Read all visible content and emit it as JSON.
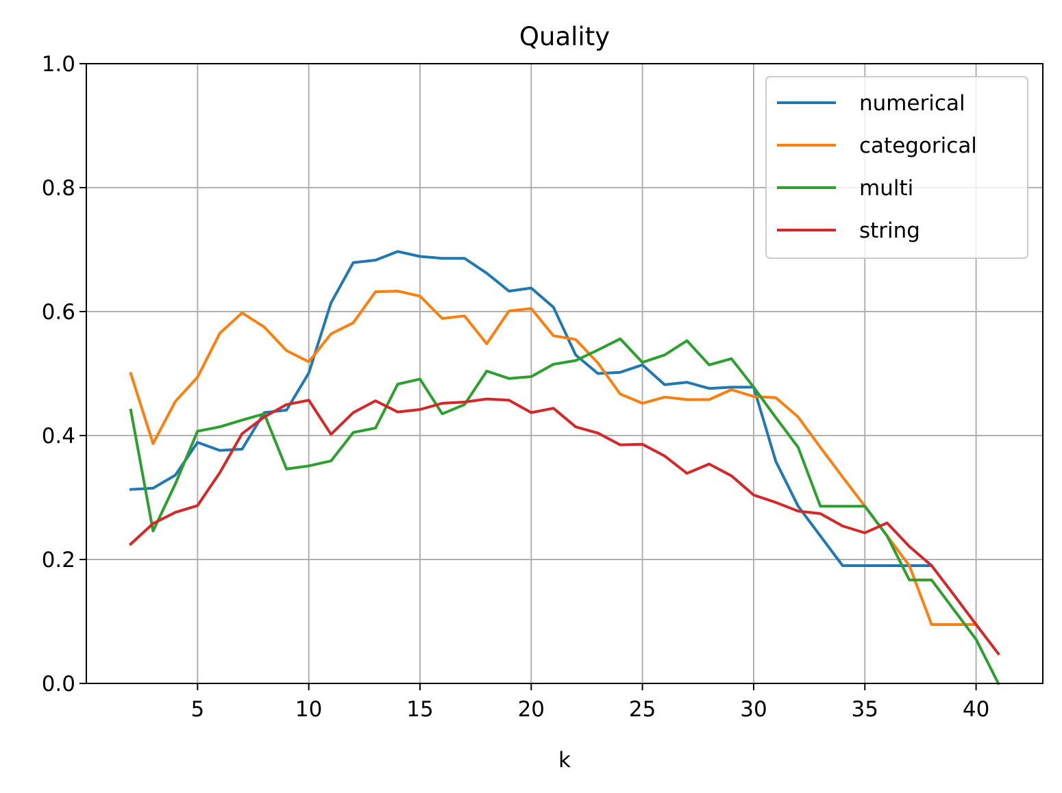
{
  "chart_data": {
    "type": "line",
    "title": "Quality",
    "xlabel": "k",
    "ylabel": "",
    "xlim": [
      0,
      43
    ],
    "ylim": [
      0,
      1
    ],
    "xticks": [
      5,
      10,
      15,
      20,
      25,
      30,
      35,
      40
    ],
    "xtick_labels": [
      "5",
      "10",
      "15",
      "20",
      "25",
      "30",
      "35",
      "40"
    ],
    "yticks": [
      0,
      0.2,
      0.4,
      0.6,
      0.8,
      1.0
    ],
    "ytick_labels": [
      "0.0",
      "0.2",
      "0.4",
      "0.6",
      "0.8",
      "1.0"
    ],
    "grid": true,
    "legend_position": "top-right",
    "x": [
      2,
      3,
      4,
      5,
      6,
      7,
      8,
      9,
      10,
      11,
      12,
      13,
      14,
      15,
      16,
      17,
      18,
      19,
      20,
      21,
      22,
      23,
      24,
      25,
      26,
      27,
      28,
      29,
      30,
      31,
      32,
      33,
      34,
      35,
      36,
      37,
      38,
      39,
      40,
      41
    ],
    "series": [
      {
        "name": "numerical",
        "color": "#1f77b4",
        "values": [
          0.313,
          0.315,
          0.336,
          0.389,
          0.376,
          0.378,
          0.437,
          0.441,
          0.501,
          0.614,
          0.679,
          0.683,
          0.697,
          0.689,
          0.686,
          0.686,
          0.662,
          0.633,
          0.638,
          0.607,
          0.53,
          0.5,
          0.502,
          0.514,
          0.482,
          0.486,
          0.476,
          0.478,
          0.478,
          0.358,
          0.286,
          0.238,
          0.19,
          0.19,
          0.19,
          0.19,
          0.19,
          null,
          null,
          null
        ]
      },
      {
        "name": "categorical",
        "color": "#ff7f0e",
        "values": [
          0.5,
          0.387,
          0.455,
          0.494,
          0.565,
          0.598,
          0.575,
          0.537,
          0.519,
          0.564,
          0.582,
          0.632,
          0.633,
          0.625,
          0.589,
          0.593,
          0.548,
          0.601,
          0.605,
          0.561,
          0.555,
          0.517,
          0.467,
          0.452,
          0.462,
          0.458,
          0.458,
          0.474,
          0.463,
          0.461,
          0.43,
          0.381,
          0.333,
          0.286,
          0.238,
          0.19,
          0.095,
          0.095,
          0.095,
          null
        ]
      },
      {
        "name": "multi",
        "color": "#2ca02c",
        "values": [
          0.441,
          0.246,
          0.322,
          0.407,
          0.414,
          0.425,
          0.435,
          0.346,
          0.351,
          0.359,
          0.405,
          0.412,
          0.483,
          0.491,
          0.435,
          0.45,
          0.504,
          0.492,
          0.495,
          0.515,
          0.521,
          0.538,
          0.556,
          0.518,
          0.53,
          0.553,
          0.514,
          0.524,
          0.478,
          0.429,
          0.381,
          0.286,
          0.286,
          0.286,
          0.238,
          0.167,
          0.167,
          0.119,
          0.071,
          0.0
        ]
      },
      {
        "name": "string",
        "color": "#d62728",
        "values": [
          0.225,
          0.258,
          0.276,
          0.287,
          0.34,
          0.403,
          0.43,
          0.45,
          0.457,
          0.402,
          0.437,
          0.456,
          0.438,
          0.442,
          0.452,
          0.454,
          0.459,
          0.457,
          0.437,
          0.444,
          0.414,
          0.404,
          0.385,
          0.386,
          0.367,
          0.339,
          0.354,
          0.335,
          0.304,
          0.292,
          0.278,
          0.274,
          0.254,
          0.243,
          0.259,
          0.221,
          0.19,
          0.143,
          0.095,
          0.048
        ]
      }
    ]
  }
}
